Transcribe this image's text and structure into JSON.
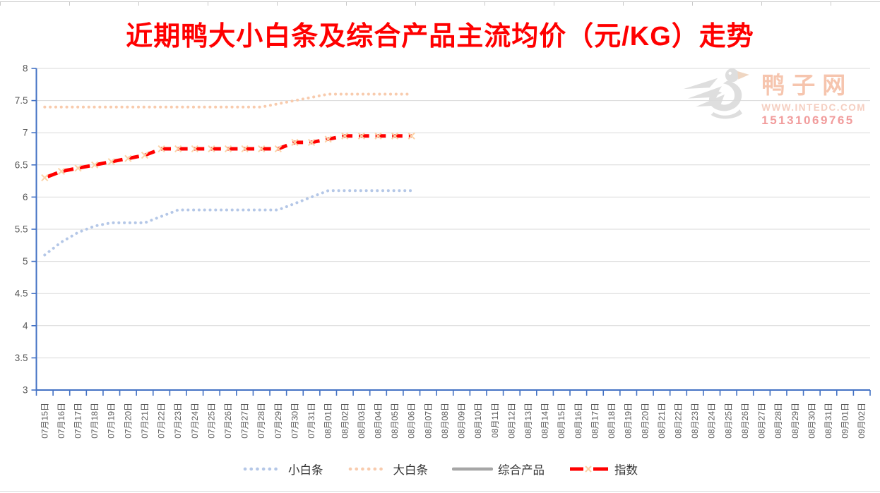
{
  "title": "近期鸭大小白条及综合产品主流均价（元/KG）走势",
  "watermark": {
    "logo": "duck-logo",
    "brand": "鸭子网",
    "url": "WWW.INTEDC.COM",
    "phone": "15131069765"
  },
  "chart_data": {
    "type": "line",
    "title": "近期鸭大小白条及综合产品主流均价（元/KG）走势",
    "unit": "元/KG",
    "xlabel": "",
    "ylabel": "",
    "ylim": [
      3,
      8
    ],
    "ytick_step": 0.5,
    "ytick_labels": [
      "3",
      "3.5",
      "4",
      "4.5",
      "5",
      "5.5",
      "6",
      "6.5",
      "7",
      "7.5",
      "8"
    ],
    "grid": true,
    "legend_position": "bottom",
    "axis_color": "#4472C4",
    "gridline_color": "#D9D9D9",
    "tick_label_color": "#595959",
    "categories": [
      "07月15日",
      "07月16日",
      "07月17日",
      "07月18日",
      "07月19日",
      "07月20日",
      "07月21日",
      "07月22日",
      "07月23日",
      "07月24日",
      "07月25日",
      "07月26日",
      "07月27日",
      "07月28日",
      "07月29日",
      "07月30日",
      "07月31日",
      "08月01日",
      "08月02日",
      "08月03日",
      "08月04日",
      "08月05日",
      "08月06日",
      "08月07日",
      "08月08日",
      "08月09日",
      "08月10日",
      "08月11日",
      "08月12日",
      "08月13日",
      "08月14日",
      "08月15日",
      "08月16日",
      "08月17日",
      "08月18日",
      "08月19日",
      "08月20日",
      "08月21日",
      "08月22日",
      "08月23日",
      "08月24日",
      "08月25日",
      "08月26日",
      "08月27日",
      "08月28日",
      "08月29日",
      "08月30日",
      "08月31日",
      "09月01日",
      "09月02日"
    ],
    "series": [
      {
        "name": "小白条",
        "style": "dotted",
        "color": "#B4C7E7",
        "values": [
          5.1,
          5.3,
          5.45,
          5.55,
          5.6,
          5.6,
          5.6,
          5.7,
          5.8,
          5.8,
          5.8,
          5.8,
          5.8,
          5.8,
          5.8,
          5.9,
          6.0,
          6.1,
          6.1,
          6.1,
          6.1,
          6.1,
          6.1
        ]
      },
      {
        "name": "大白条",
        "style": "dotted",
        "color": "#F8CBAD",
        "values": [
          7.4,
          7.4,
          7.4,
          7.4,
          7.4,
          7.4,
          7.4,
          7.4,
          7.4,
          7.4,
          7.4,
          7.4,
          7.4,
          7.4,
          7.45,
          7.5,
          7.55,
          7.6,
          7.6,
          7.6,
          7.6,
          7.6,
          7.6
        ]
      },
      {
        "name": "综合产品",
        "style": "solid",
        "color": "#A6A6A6",
        "values": []
      },
      {
        "name": "指数",
        "style": "dashed-x",
        "color": "#FF0000",
        "marker_color": "#FBD3A8",
        "values": [
          6.3,
          6.4,
          6.45,
          6.5,
          6.55,
          6.6,
          6.65,
          6.75,
          6.75,
          6.75,
          6.75,
          6.75,
          6.75,
          6.75,
          6.75,
          6.85,
          6.85,
          6.9,
          6.95,
          6.95,
          6.95,
          6.95,
          6.95
        ]
      }
    ]
  }
}
